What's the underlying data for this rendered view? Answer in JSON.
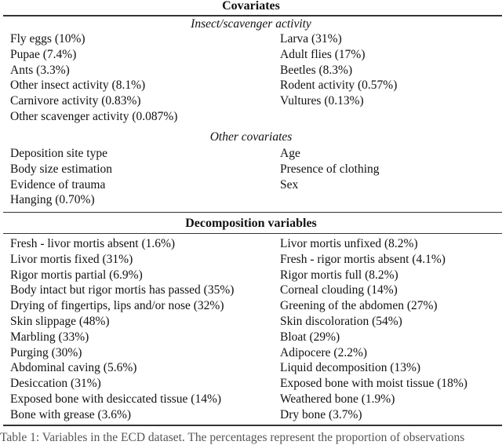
{
  "covariates": {
    "title": "Covariates",
    "insect": {
      "subtitle": "Insect/scavenger activity",
      "items": [
        "Fly eggs (10%)",
        "Larva (31%)",
        "Pupae (7.4%)",
        "Adult flies (17%)",
        "Ants (3.3%)",
        "Beetles (8.3%)",
        "Other insect activity (8.1%)",
        "Rodent activity (0.57%)",
        "Carnivore activity (0.83%)",
        "Vultures (0.13%)",
        "Other scavenger activity (0.087%)"
      ]
    },
    "other": {
      "subtitle": "Other covariates",
      "items": [
        "Deposition site type",
        "Age",
        "Body size estimation",
        "Presence of clothing",
        "Evidence of trauma",
        "Sex",
        "Hanging (0.70%)"
      ]
    }
  },
  "decomposition": {
    "title": "Decomposition variables",
    "items": [
      "Fresh - livor mortis absent (1.6%)",
      "Livor mortis unfixed (8.2%)",
      "Livor mortis fixed (31%)",
      "Fresh - rigor mortis absent (4.1%)",
      "Rigor mortis partial (6.9%)",
      "Rigor mortis full (8.2%)",
      "Body intact but rigor mortis has passed (35%)",
      "Corneal clouding (14%)",
      "Drying of fingertips, lips and/or nose (32%)",
      "Greening of the abdomen (27%)",
      "Skin slippage (48%)",
      "Skin discoloration (54%)",
      "Marbling (33%)",
      "Bloat (29%)",
      "Purging (30%)",
      "Adipocere (2.2%)",
      "Abdominal caving (5.6%)",
      "Liquid decomposition (13%)",
      "Desiccation (31%)",
      "Exposed bone with moist tissue (18%)",
      "Exposed bone with desiccated tissue (14%)",
      "Weathered bone (1.9%)",
      "Bone with grease (3.6%)",
      "Dry bone (3.7%)"
    ]
  },
  "caption": "Table 1: Variables in the ECD dataset. The percentages represent the proportion of observations"
}
